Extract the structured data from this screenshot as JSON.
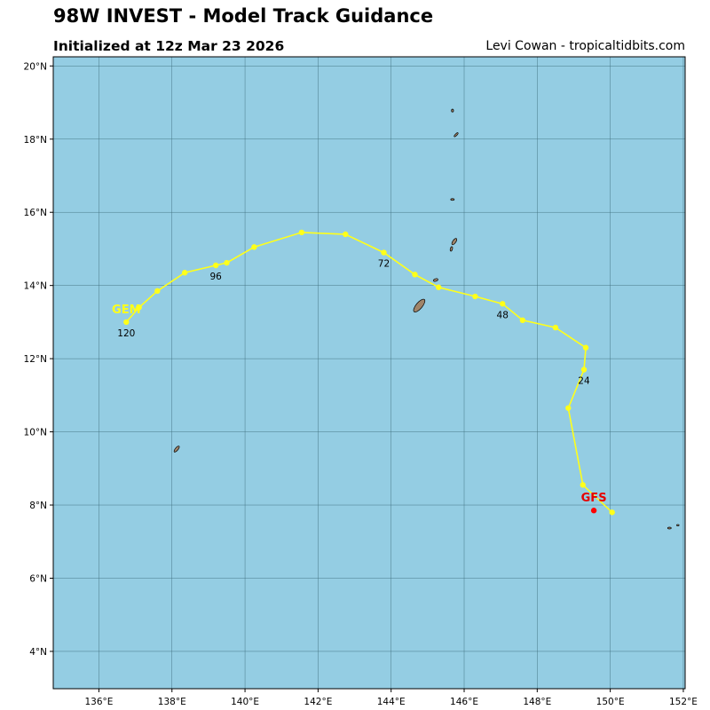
{
  "header": {
    "title": "98W INVEST - Model Track Guidance",
    "subtitle": "Initialized at 12z Mar 23 2026",
    "credit": "Levi Cowan - tropicaltidbits.com"
  },
  "colors": {
    "ocean": "#94cde3",
    "grid": "#3f6f7d",
    "land": "#a0856a",
    "gem_track": "#ffff1a",
    "gfs_point": "#ff0000",
    "gem_label": "#ffff1a",
    "gfs_label": "#e60000"
  },
  "chart_data": {
    "type": "map",
    "xlim": [
      134.75,
      152.05
    ],
    "ylim": [
      2.98,
      20.25
    ],
    "x_ticks": [
      136,
      138,
      140,
      142,
      144,
      146,
      148,
      150,
      152
    ],
    "x_tick_labels": [
      "136°E",
      "138°E",
      "140°E",
      "142°E",
      "144°E",
      "146°E",
      "148°E",
      "150°E",
      "152°E"
    ],
    "y_ticks": [
      4,
      6,
      8,
      10,
      12,
      14,
      16,
      18,
      20
    ],
    "y_tick_labels": [
      "4°N",
      "6°N",
      "8°N",
      "10°N",
      "12°N",
      "14°N",
      "16°N",
      "18°N",
      "20°N"
    ],
    "series": [
      {
        "name": "GEM",
        "track": [
          [
            150.05,
            7.8
          ],
          [
            149.25,
            8.55
          ],
          [
            148.85,
            10.65
          ],
          [
            149.28,
            11.7
          ],
          [
            149.33,
            12.3
          ],
          [
            148.5,
            12.85
          ],
          [
            147.6,
            13.05
          ],
          [
            147.05,
            13.5
          ],
          [
            146.3,
            13.7
          ],
          [
            145.3,
            13.95
          ],
          [
            144.65,
            14.3
          ],
          [
            143.8,
            14.9
          ],
          [
            142.75,
            15.4
          ],
          [
            141.55,
            15.45
          ],
          [
            140.25,
            15.05
          ],
          [
            139.5,
            14.62
          ],
          [
            139.2,
            14.55
          ],
          [
            138.35,
            14.35
          ],
          [
            137.6,
            13.85
          ],
          [
            137.1,
            13.4
          ],
          [
            136.75,
            13.0
          ]
        ],
        "hour_labels": [
          {
            "text": "24",
            "lon": 149.28,
            "lat": 11.7
          },
          {
            "text": "48",
            "lon": 147.05,
            "lat": 13.5
          },
          {
            "text": "72",
            "lon": 143.8,
            "lat": 14.9
          },
          {
            "text": "96",
            "lon": 139.2,
            "lat": 14.55
          },
          {
            "text": "120",
            "lon": 136.75,
            "lat": 13.0
          }
        ],
        "model_label": {
          "text": "GEM",
          "lon": 136.75,
          "lat": 13.0
        }
      },
      {
        "name": "GFS",
        "track": [
          [
            149.55,
            7.85
          ]
        ],
        "model_label": {
          "text": "GFS",
          "lon": 149.55,
          "lat": 7.85
        }
      }
    ],
    "islands": [
      {
        "name": "guam",
        "lon": 144.77,
        "lat": 13.45
      },
      {
        "name": "rota",
        "lon": 145.22,
        "lat": 14.15
      },
      {
        "name": "saipan",
        "lon": 145.73,
        "lat": 15.2
      },
      {
        "name": "anatahan",
        "lon": 145.65,
        "lat": 15.0
      },
      {
        "name": "sarigan",
        "lon": 145.68,
        "lat": 16.35
      },
      {
        "name": "pagan",
        "lon": 145.78,
        "lat": 18.12
      },
      {
        "name": "agrihan",
        "lon": 145.68,
        "lat": 18.78
      },
      {
        "name": "yap",
        "lon": 138.13,
        "lat": 9.53
      },
      {
        "name": "chuuk-a",
        "lon": 151.62,
        "lat": 7.37
      },
      {
        "name": "chuuk-b",
        "lon": 151.85,
        "lat": 7.45
      }
    ]
  }
}
